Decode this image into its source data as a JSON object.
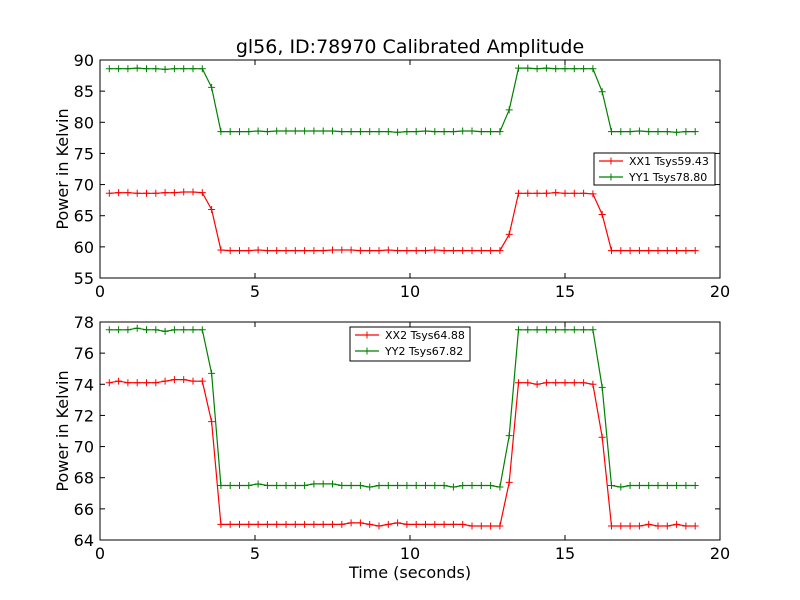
{
  "chart_data": [
    {
      "type": "line",
      "title": "gl56, ID:78970 Calibrated Amplitude",
      "xlabel": "",
      "ylabel": "Power in Kelvin",
      "xlim": [
        0,
        20
      ],
      "ylim": [
        55,
        90
      ],
      "xticks": [
        "0",
        "5",
        "10",
        "15",
        "20"
      ],
      "yticks": [
        "55",
        "60",
        "65",
        "70",
        "75",
        "80",
        "85",
        "90"
      ],
      "legend_position": "center-right",
      "grid": false,
      "x": [
        0.3,
        0.6,
        0.9,
        1.2,
        1.5,
        1.8,
        2.1,
        2.4,
        2.7,
        3.0,
        3.3,
        3.6,
        3.9,
        4.2,
        4.5,
        4.8,
        5.1,
        5.4,
        5.7,
        6.0,
        6.3,
        6.6,
        6.9,
        7.2,
        7.5,
        7.8,
        8.1,
        8.4,
        8.7,
        9.0,
        9.3,
        9.6,
        9.9,
        10.2,
        10.5,
        10.8,
        11.1,
        11.4,
        11.7,
        12.0,
        12.3,
        12.6,
        12.9,
        13.2,
        13.5,
        13.8,
        14.1,
        14.4,
        14.7,
        15.0,
        15.3,
        15.6,
        15.9,
        16.2,
        16.5,
        16.8,
        17.1,
        17.4,
        17.7,
        18.0,
        18.3,
        18.6,
        18.9,
        19.2
      ],
      "series": [
        {
          "name": "XX1 Tsys59.43",
          "color": "#ff0000",
          "values": [
            68.6,
            68.7,
            68.7,
            68.6,
            68.6,
            68.6,
            68.7,
            68.7,
            68.8,
            68.8,
            68.7,
            66.0,
            59.5,
            59.4,
            59.4,
            59.4,
            59.5,
            59.4,
            59.4,
            59.4,
            59.4,
            59.4,
            59.4,
            59.4,
            59.5,
            59.5,
            59.5,
            59.4,
            59.4,
            59.4,
            59.5,
            59.4,
            59.4,
            59.4,
            59.4,
            59.5,
            59.4,
            59.4,
            59.4,
            59.4,
            59.4,
            59.4,
            59.4,
            62.0,
            68.6,
            68.6,
            68.6,
            68.6,
            68.7,
            68.6,
            68.6,
            68.6,
            68.5,
            65.2,
            59.4,
            59.4,
            59.4,
            59.4,
            59.4,
            59.4,
            59.4,
            59.4,
            59.4,
            59.4
          ]
        },
        {
          "name": "YY1 Tsys78.80",
          "color": "#008000",
          "values": [
            88.6,
            88.6,
            88.6,
            88.7,
            88.6,
            88.6,
            88.5,
            88.6,
            88.6,
            88.6,
            88.6,
            85.6,
            78.5,
            78.5,
            78.5,
            78.5,
            78.6,
            78.5,
            78.6,
            78.6,
            78.6,
            78.6,
            78.6,
            78.6,
            78.6,
            78.5,
            78.5,
            78.5,
            78.5,
            78.5,
            78.5,
            78.4,
            78.5,
            78.5,
            78.6,
            78.5,
            78.5,
            78.5,
            78.6,
            78.6,
            78.5,
            78.5,
            78.5,
            82.0,
            88.7,
            88.7,
            88.6,
            88.7,
            88.6,
            88.6,
            88.6,
            88.6,
            88.6,
            84.9,
            78.5,
            78.5,
            78.5,
            78.6,
            78.5,
            78.5,
            78.5,
            78.4,
            78.5,
            78.5
          ]
        }
      ]
    },
    {
      "type": "line",
      "title": "",
      "xlabel": "Time (seconds)",
      "ylabel": "Power in Kelvin",
      "xlim": [
        0,
        20
      ],
      "ylim": [
        64,
        78
      ],
      "xticks": [
        "0",
        "5",
        "10",
        "15",
        "20"
      ],
      "yticks": [
        "64",
        "66",
        "68",
        "70",
        "72",
        "74",
        "76",
        "78"
      ],
      "legend_position": "upper-center",
      "grid": false,
      "x": [
        0.3,
        0.6,
        0.9,
        1.2,
        1.5,
        1.8,
        2.1,
        2.4,
        2.7,
        3.0,
        3.3,
        3.6,
        3.9,
        4.2,
        4.5,
        4.8,
        5.1,
        5.4,
        5.7,
        6.0,
        6.3,
        6.6,
        6.9,
        7.2,
        7.5,
        7.8,
        8.1,
        8.4,
        8.7,
        9.0,
        9.3,
        9.6,
        9.9,
        10.2,
        10.5,
        10.8,
        11.1,
        11.4,
        11.7,
        12.0,
        12.3,
        12.6,
        12.9,
        13.2,
        13.5,
        13.8,
        14.1,
        14.4,
        14.7,
        15.0,
        15.3,
        15.6,
        15.9,
        16.2,
        16.5,
        16.8,
        17.1,
        17.4,
        17.7,
        18.0,
        18.3,
        18.6,
        18.9,
        19.2
      ],
      "series": [
        {
          "name": "XX2 Tsys64.88",
          "color": "#ff0000",
          "values": [
            74.1,
            74.2,
            74.1,
            74.1,
            74.1,
            74.1,
            74.2,
            74.3,
            74.3,
            74.2,
            74.2,
            71.6,
            65.0,
            65.0,
            65.0,
            65.0,
            65.0,
            65.0,
            65.0,
            65.0,
            65.0,
            65.0,
            65.0,
            65.0,
            65.0,
            65.0,
            65.1,
            65.1,
            65.0,
            64.9,
            65.0,
            65.1,
            65.0,
            65.0,
            65.0,
            65.0,
            65.0,
            65.0,
            65.0,
            64.9,
            64.9,
            64.9,
            64.9,
            67.7,
            74.1,
            74.1,
            74.0,
            74.1,
            74.1,
            74.1,
            74.1,
            74.1,
            74.0,
            70.6,
            64.9,
            64.9,
            64.9,
            64.9,
            65.0,
            64.9,
            64.9,
            65.0,
            64.9,
            64.9
          ]
        },
        {
          "name": "YY2 Tsys67.82",
          "color": "#008000",
          "values": [
            77.5,
            77.5,
            77.5,
            77.6,
            77.5,
            77.5,
            77.4,
            77.5,
            77.5,
            77.5,
            77.5,
            74.7,
            67.5,
            67.5,
            67.5,
            67.5,
            67.6,
            67.5,
            67.5,
            67.5,
            67.5,
            67.5,
            67.6,
            67.6,
            67.6,
            67.5,
            67.5,
            67.5,
            67.4,
            67.5,
            67.5,
            67.5,
            67.5,
            67.5,
            67.5,
            67.5,
            67.5,
            67.4,
            67.5,
            67.5,
            67.5,
            67.5,
            67.4,
            70.7,
            77.5,
            77.5,
            77.5,
            77.5,
            77.5,
            77.5,
            77.5,
            77.5,
            77.5,
            73.8,
            67.5,
            67.4,
            67.5,
            67.5,
            67.5,
            67.5,
            67.5,
            67.5,
            67.5,
            67.5
          ]
        }
      ]
    }
  ]
}
